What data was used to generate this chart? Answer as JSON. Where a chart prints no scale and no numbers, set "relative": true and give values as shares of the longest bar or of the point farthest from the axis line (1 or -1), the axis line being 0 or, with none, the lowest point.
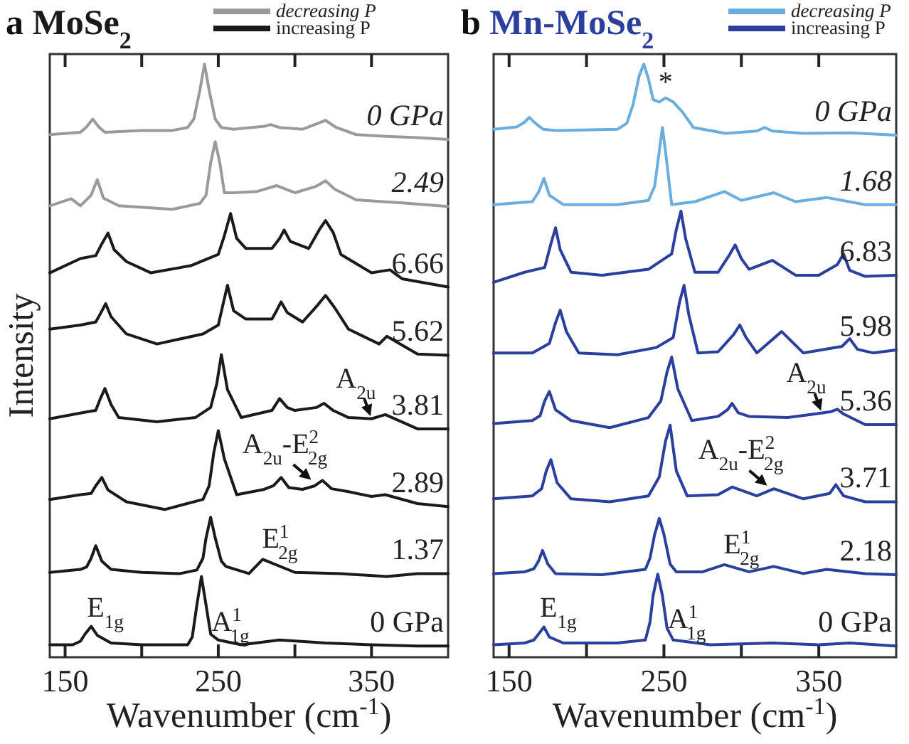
{
  "chart_data": [
    {
      "type": "line",
      "title": "a MoSe$_{2}$",
      "xlabel": "Wavenumber (cm$^{-1}$)",
      "ylabel": "Intensity",
      "relative": true,
      "xlim": [
        140,
        400
      ],
      "xticks": [
        150,
        250,
        350
      ],
      "annotations": [
        "decreasing P",
        "increasing P",
        {
          "text": "E$_{1g}$",
          "x": 167,
          "y": 0.052
        },
        {
          "text": "A$^{1}$$_{1g}$",
          "x": 239,
          "y": 0.136
        },
        {
          "text": "E$^{1}$$_{2g}$",
          "x": 279,
          "y": 0.165
        },
        {
          "text": "A$_{2u}$-E$^{2}$$_{2g}$",
          "x": 312,
          "y": 0.296
        },
        {
          "text": "A$_{2u}$",
          "x": 350,
          "y": 0.402
        }
      ],
      "series": [
        {
          "name": "0 GPa",
          "color": "#9a9a9a",
          "x": [
            140,
            160,
            164,
            168,
            172,
            176,
            200,
            220,
            230,
            234,
            238,
            241,
            244,
            248,
            252,
            260,
            280,
            284,
            290,
            305,
            313,
            320,
            327,
            340,
            360,
            380,
            400
          ],
          "values": [
            0.881,
            0.885,
            0.894,
            0.907,
            0.894,
            0.885,
            0.888,
            0.888,
            0.893,
            0.907,
            0.956,
            1,
            0.956,
            0.907,
            0.893,
            0.89,
            0.895,
            0.898,
            0.893,
            0.89,
            0.898,
            0.905,
            0.893,
            0.881,
            0.878,
            0.876,
            0.873
          ]
        },
        {
          "name": "2.49",
          "color": "#9a9a9a",
          "x": [
            140,
            154,
            160,
            167,
            171,
            175,
            185,
            220,
            238,
            242,
            245,
            248,
            251,
            254,
            260,
            275,
            288,
            300,
            314,
            320,
            326,
            340,
            370,
            400
          ],
          "values": [
            0.761,
            0.773,
            0.761,
            0.779,
            0.805,
            0.774,
            0.761,
            0.755,
            0.765,
            0.779,
            0.833,
            0.869,
            0.833,
            0.783,
            0.783,
            0.785,
            0.795,
            0.783,
            0.794,
            0.803,
            0.789,
            0.771,
            0.766,
            0.76
          ]
        },
        {
          "name": "6.66",
          "color": "#1a1a1a",
          "x": [
            140,
            160,
            170,
            174,
            178,
            182,
            190,
            206,
            232,
            250,
            254,
            258,
            262,
            268,
            285,
            290,
            293,
            297,
            309,
            316,
            320,
            325,
            330,
            350,
            362,
            370,
            400
          ],
          "values": [
            0.648,
            0.672,
            0.677,
            0.697,
            0.715,
            0.687,
            0.667,
            0.648,
            0.66,
            0.679,
            0.711,
            0.748,
            0.706,
            0.689,
            0.689,
            0.706,
            0.72,
            0.701,
            0.689,
            0.721,
            0.736,
            0.716,
            0.679,
            0.648,
            0.653,
            0.638,
            0.624
          ]
        },
        {
          "name": "5.62",
          "color": "#1a1a1a",
          "x": [
            140,
            160,
            170,
            173,
            176.5,
            180,
            190,
            210,
            240,
            250,
            253,
            256,
            260,
            268,
            285,
            288,
            291,
            295,
            305,
            315,
            320,
            326,
            335,
            355,
            360,
            380,
            400
          ],
          "values": [
            0.553,
            0.56,
            0.565,
            0.579,
            0.596,
            0.574,
            0.545,
            0.528,
            0.545,
            0.56,
            0.594,
            0.627,
            0.584,
            0.57,
            0.57,
            0.584,
            0.599,
            0.581,
            0.565,
            0.594,
            0.61,
            0.589,
            0.553,
            0.528,
            0.541,
            0.511,
            0.509
          ]
        },
        {
          "name": "3.81",
          "color": "#1a1a1a",
          "x": [
            140,
            165,
            170,
            173,
            176,
            180,
            185,
            210,
            235,
            245,
            249,
            252,
            256,
            265,
            285,
            290,
            295,
            300,
            314,
            319,
            325,
            335,
            350,
            359,
            380,
            400
          ],
          "values": [
            0.402,
            0.414,
            0.416,
            0.436,
            0.453,
            0.426,
            0.404,
            0.397,
            0.404,
            0.421,
            0.461,
            0.51,
            0.451,
            0.404,
            0.416,
            0.436,
            0.421,
            0.416,
            0.421,
            0.428,
            0.416,
            0.404,
            0.402,
            0.409,
            0.385,
            0.385
          ]
        },
        {
          "name": "2.89",
          "color": "#1a1a1a",
          "x": [
            140,
            160,
            167,
            170,
            174,
            178,
            190,
            215,
            240,
            244,
            247,
            250,
            254,
            262,
            280,
            286,
            291,
            296,
            305,
            313,
            318,
            324,
            335,
            350,
            359,
            380,
            400
          ],
          "values": [
            0.266,
            0.274,
            0.276,
            0.289,
            0.303,
            0.282,
            0.262,
            0.249,
            0.266,
            0.289,
            0.344,
            0.382,
            0.334,
            0.274,
            0.283,
            0.289,
            0.303,
            0.286,
            0.283,
            0.289,
            0.298,
            0.284,
            0.279,
            0.271,
            0.274,
            0.259,
            0.254
          ]
        },
        {
          "name": "1.37",
          "color": "#1a1a1a",
          "x": [
            140,
            160,
            164,
            167,
            170,
            174,
            180,
            200,
            225,
            236,
            240,
            242,
            245,
            248,
            252,
            255,
            270,
            279,
            300,
            330,
            360,
            380,
            400
          ],
          "values": [
            0.143,
            0.148,
            0.152,
            0.167,
            0.188,
            0.162,
            0.148,
            0.143,
            0.141,
            0.147,
            0.167,
            0.201,
            0.236,
            0.201,
            0.162,
            0.153,
            0.141,
            0.165,
            0.143,
            0.141,
            0.136,
            0.141,
            0.141
          ]
        },
        {
          "name": "0 GPa",
          "color": "#1a1a1a",
          "x": [
            140,
            155,
            160,
            163,
            167,
            171,
            180,
            200,
            230,
            233,
            236,
            239,
            242,
            245,
            250,
            265,
            290,
            320,
            350,
            380,
            400
          ],
          "values": [
            0.021,
            0.021,
            0.027,
            0.039,
            0.052,
            0.037,
            0.024,
            0.021,
            0.021,
            0.034,
            0.088,
            0.136,
            0.088,
            0.039,
            0.029,
            0.021,
            0.029,
            0.024,
            0.021,
            0.019,
            0.019
          ]
        }
      ]
    },
    {
      "type": "line",
      "title": "b Mn-MoSe$_{2}$",
      "xlabel": "Wavenumber (cm$^{-1}$)",
      "relative": true,
      "xlim": [
        140,
        400
      ],
      "xticks": [
        150,
        250,
        350
      ],
      "annotations": [
        "decreasing P",
        "increasing P",
        {
          "text": "E$_{1g}$",
          "x": 172.5,
          "y": 0.051
        },
        {
          "text": "A$^{1}$$_{1g}$",
          "x": 246,
          "y": 0.14
        },
        {
          "text": "E$^{1}$$_{2g}$",
          "x": 289,
          "y": 0.156
        },
        {
          "text": "A$_{2u}$-E$^{2}$$_{2g}$",
          "x": 318,
          "y": 0.286
        },
        {
          "text": "A$_{2u}$",
          "x": 352,
          "y": 0.411
        },
        {
          "text": "*",
          "x": 251,
          "y": 0.943
        }
      ],
      "series": [
        {
          "name": "0 GPa",
          "color": "#6aaee0",
          "x": [
            140,
            155,
            160,
            163,
            167,
            172,
            180,
            220,
            226,
            230,
            234,
            237,
            240,
            243,
            247,
            251,
            256,
            262,
            269,
            290,
            310,
            315,
            320,
            340,
            370,
            400
          ],
          "values": [
            0.89,
            0.894,
            0.902,
            0.91,
            0.9,
            0.89,
            0.888,
            0.89,
            0.9,
            0.931,
            0.98,
            1,
            0.975,
            0.94,
            0.936,
            0.943,
            0.936,
            0.919,
            0.893,
            0.883,
            0.887,
            0.893,
            0.887,
            0.883,
            0.884,
            0.88
          ]
        },
        {
          "name": "1.68",
          "color": "#6aaee0",
          "x": [
            140,
            165,
            169,
            172.5,
            176,
            185,
            220,
            240,
            244,
            247,
            249,
            251,
            255,
            270,
            289,
            300,
            321,
            335,
            355,
            380,
            400
          ],
          "values": [
            0.763,
            0.768,
            0.784,
            0.807,
            0.779,
            0.763,
            0.763,
            0.77,
            0.794,
            0.853,
            0.893,
            0.853,
            0.763,
            0.768,
            0.785,
            0.77,
            0.783,
            0.768,
            0.775,
            0.763,
            0.763
          ]
        },
        {
          "name": "6.83",
          "color": "#2b3f9e",
          "x": [
            140,
            160,
            173,
            177,
            180,
            183,
            190,
            210,
            240,
            255,
            258,
            261,
            264,
            270,
            285,
            292,
            296,
            300,
            305,
            320,
            335,
            350,
            362,
            366,
            370,
            380,
            400
          ],
          "values": [
            0.632,
            0.649,
            0.657,
            0.697,
            0.724,
            0.687,
            0.649,
            0.644,
            0.654,
            0.68,
            0.721,
            0.752,
            0.706,
            0.649,
            0.649,
            0.677,
            0.695,
            0.672,
            0.654,
            0.669,
            0.644,
            0.644,
            0.662,
            0.68,
            0.652,
            0.642,
            0.644
          ]
        },
        {
          "name": "5.98",
          "color": "#2b3f9e",
          "x": [
            140,
            165,
            176,
            180,
            183,
            187,
            195,
            220,
            245,
            256,
            260,
            263,
            266,
            272,
            285,
            295,
            299,
            303,
            310,
            326,
            340,
            365,
            370,
            375,
            385,
            400
          ],
          "values": [
            0.513,
            0.513,
            0.529,
            0.564,
            0.585,
            0.549,
            0.513,
            0.51,
            0.522,
            0.539,
            0.598,
            0.627,
            0.578,
            0.513,
            0.515,
            0.544,
            0.56,
            0.539,
            0.513,
            0.549,
            0.513,
            0.524,
            0.537,
            0.519,
            0.513,
            0.518
          ]
        },
        {
          "name": "5.36",
          "color": "#2b3f9e",
          "x": [
            140,
            165,
            170,
            173,
            176,
            180,
            190,
            215,
            240,
            248,
            252,
            255,
            259,
            268,
            285,
            291,
            294,
            298,
            305,
            330,
            350,
            358,
            362,
            366,
            380,
            400
          ],
          "values": [
            0.394,
            0.399,
            0.407,
            0.432,
            0.448,
            0.417,
            0.399,
            0.387,
            0.404,
            0.432,
            0.481,
            0.506,
            0.452,
            0.399,
            0.406,
            0.417,
            0.428,
            0.412,
            0.406,
            0.404,
            0.411,
            0.414,
            0.418,
            0.41,
            0.392,
            0.392
          ]
        },
        {
          "name": "3.71",
          "color": "#2b3f9e",
          "x": [
            140,
            165,
            171,
            174,
            177,
            181,
            190,
            215,
            240,
            247,
            251,
            254,
            258,
            265,
            285,
            294,
            310,
            321,
            340,
            357,
            361,
            366,
            380,
            400
          ],
          "values": [
            0.267,
            0.272,
            0.284,
            0.314,
            0.333,
            0.294,
            0.267,
            0.262,
            0.272,
            0.304,
            0.364,
            0.391,
            0.314,
            0.272,
            0.274,
            0.287,
            0.272,
            0.284,
            0.267,
            0.276,
            0.291,
            0.272,
            0.262,
            0.262
          ]
        },
        {
          "name": "2.18",
          "color": "#2b3f9e",
          "x": [
            140,
            160,
            166,
            169,
            171.6,
            175,
            180,
            210,
            238,
            241,
            244,
            247,
            250,
            254,
            258,
            275,
            289,
            305,
            321,
            340,
            355,
            380,
            400
          ],
          "values": [
            0.141,
            0.144,
            0.149,
            0.162,
            0.18,
            0.157,
            0.141,
            0.139,
            0.148,
            0.167,
            0.207,
            0.234,
            0.207,
            0.157,
            0.144,
            0.144,
            0.156,
            0.144,
            0.153,
            0.141,
            0.148,
            0.141,
            0.139
          ]
        },
        {
          "name": "0 GPa",
          "color": "#2b3f9e",
          "x": [
            140,
            160,
            166,
            169,
            172.5,
            176,
            185,
            220,
            238,
            241,
            243,
            246,
            249,
            252,
            256,
            280,
            320,
            350,
            370,
            400
          ],
          "values": [
            0.021,
            0.024,
            0.029,
            0.039,
            0.051,
            0.034,
            0.024,
            0.024,
            0.029,
            0.059,
            0.104,
            0.14,
            0.104,
            0.049,
            0.029,
            0.021,
            0.024,
            0.021,
            0.024,
            0.019
          ]
        }
      ]
    }
  ]
}
